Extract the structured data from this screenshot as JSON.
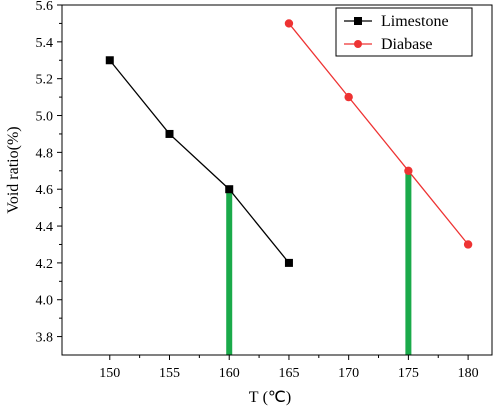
{
  "chart_data": {
    "type": "line",
    "xlabel": "T (℃)",
    "ylabel": "Void ratio(%)",
    "xlim": [
      146,
      182
    ],
    "ylim": [
      3.7,
      5.6
    ],
    "x_ticks": [
      150,
      155,
      160,
      165,
      170,
      175,
      180
    ],
    "x_tick_labels": [
      "150",
      "155",
      "160",
      "165",
      "170",
      "175",
      "180"
    ],
    "y_ticks": [
      3.8,
      4.0,
      4.2,
      4.4,
      4.6,
      4.8,
      5.0,
      5.2,
      5.4,
      5.6
    ],
    "y_tick_labels": [
      "3.8",
      "4.0",
      "4.2",
      "4.4",
      "4.6",
      "4.8",
      "5.0",
      "5.2",
      "5.4",
      "5.6"
    ],
    "grid": false,
    "legend": "top-right",
    "series": [
      {
        "name": "Limestone",
        "x": [
          150,
          155,
          160,
          165
        ],
        "values": [
          5.3,
          4.9,
          4.6,
          4.2
        ],
        "color": "#000000",
        "marker": "square"
      },
      {
        "name": "Diabase",
        "x": [
          165,
          170,
          175,
          180
        ],
        "values": [
          5.5,
          5.1,
          4.7,
          4.3
        ],
        "color": "#ee3333",
        "marker": "circle"
      }
    ],
    "annotations": [
      {
        "type": "vertical-bar",
        "x": 160,
        "from": 3.7,
        "to": 4.6,
        "color": "#1aaa4a"
      },
      {
        "type": "vertical-bar",
        "x": 175,
        "from": 3.7,
        "to": 4.7,
        "color": "#1aaa4a"
      }
    ]
  }
}
